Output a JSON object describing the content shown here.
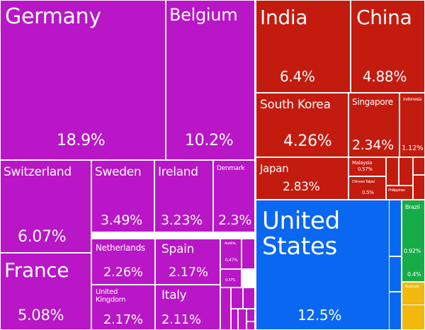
{
  "chart_data": {
    "type": "treemap",
    "colors": {
      "Europe": "#b816c6",
      "Asia": "#c41b0f",
      "North America": "#0a67f1",
      "South America": "#16ad48",
      "Oceania": "#f2b80e"
    },
    "items": [
      {
        "id": "germany",
        "name": "Germany",
        "value": "18.9%",
        "region": "Europe"
      },
      {
        "id": "belgium",
        "name": "Belgium",
        "value": "10.2%",
        "region": "Europe"
      },
      {
        "id": "switzerland",
        "name": "Switzerland",
        "value": "6.07%",
        "region": "Europe"
      },
      {
        "id": "sweden",
        "name": "Sweden",
        "value": "3.49%",
        "region": "Europe"
      },
      {
        "id": "ireland",
        "name": "Ireland",
        "value": "3.23%",
        "region": "Europe"
      },
      {
        "id": "denmark",
        "name": "Denmark",
        "value": "2.3%",
        "region": "Europe"
      },
      {
        "id": "france",
        "name": "France",
        "value": "5.08%",
        "region": "Europe"
      },
      {
        "id": "netherlands",
        "name": "Netherlands",
        "value": "2.26%",
        "region": "Europe"
      },
      {
        "id": "spain",
        "name": "Spain",
        "value": "2.17%",
        "region": "Europe"
      },
      {
        "id": "united-kingdom",
        "name": "United Kingdom",
        "value": "2.17%",
        "region": "Europe"
      },
      {
        "id": "italy",
        "name": "Italy",
        "value": "2.11%",
        "region": "Europe"
      },
      {
        "id": "austria",
        "name": "Austria",
        "value": "0.47%",
        "region": "Europe"
      },
      {
        "id": "small-europe",
        "name": "",
        "value": "0.37%",
        "region": "Europe"
      },
      {
        "id": "india",
        "name": "India",
        "value": "6.4%",
        "region": "Asia"
      },
      {
        "id": "china",
        "name": "China",
        "value": "4.88%",
        "region": "Asia"
      },
      {
        "id": "south-korea",
        "name": "South Korea",
        "value": "4.26%",
        "region": "Asia"
      },
      {
        "id": "singapore",
        "name": "Singapore",
        "value": "2.34%",
        "region": "Asia"
      },
      {
        "id": "indonesia",
        "name": "Indonesia",
        "value": "1.12%",
        "region": "Asia"
      },
      {
        "id": "japan",
        "name": "Japan",
        "value": "2.83%",
        "region": "Asia"
      },
      {
        "id": "malaysia",
        "name": "Malaysia",
        "value": "0.57%",
        "region": "Asia"
      },
      {
        "id": "chinese-taipei",
        "name": "Chinese Taipei",
        "value": "0.5%",
        "region": "Asia"
      },
      {
        "id": "philippines",
        "name": "Philippines",
        "value": "",
        "region": "Asia"
      },
      {
        "id": "united-states",
        "name": "United States",
        "value": "12.5%",
        "region": "North America"
      },
      {
        "id": "brazil",
        "name": "Brazil",
        "value": "0.92%",
        "region": "South America"
      },
      {
        "id": "south-america-other",
        "name": "",
        "value": "0.4%",
        "region": "South America"
      },
      {
        "id": "australia",
        "name": "Australia",
        "value": "0.62%",
        "region": "Oceania"
      }
    ]
  }
}
